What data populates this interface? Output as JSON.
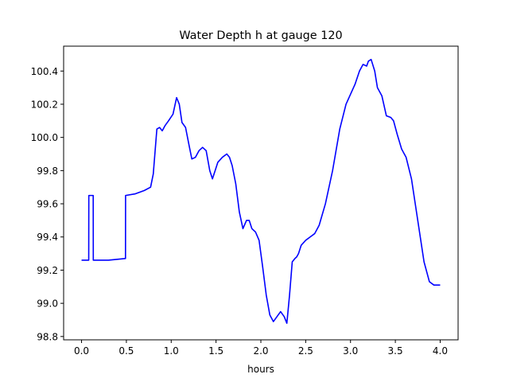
{
  "chart_data": {
    "type": "line",
    "title": "Water Depth h at gauge 120",
    "xlabel": "hours",
    "ylabel": "",
    "xlim": [
      -0.2,
      4.2
    ],
    "ylim": [
      98.78,
      100.55
    ],
    "xticks": [
      "0.0",
      "0.5",
      "1.0",
      "1.5",
      "2.0",
      "2.5",
      "3.0",
      "3.5",
      "4.0"
    ],
    "yticks": [
      "98.8",
      "99.0",
      "99.2",
      "99.4",
      "99.6",
      "99.8",
      "100.0",
      "100.2",
      "100.4"
    ],
    "grid": false,
    "line_color": "#0000ff",
    "series": [
      {
        "x": [
          0.0,
          0.08,
          0.081,
          0.13,
          0.131,
          0.3,
          0.49,
          0.491,
          0.6,
          0.7,
          0.77,
          0.8,
          0.84,
          0.87,
          0.9,
          0.93,
          0.97,
          1.02,
          1.06,
          1.09,
          1.12,
          1.16,
          1.2,
          1.23,
          1.27,
          1.31,
          1.35,
          1.39,
          1.43,
          1.46,
          1.49,
          1.52,
          1.57,
          1.62,
          1.65,
          1.68,
          1.72,
          1.76,
          1.8,
          1.84,
          1.87,
          1.9,
          1.94,
          1.98,
          2.02,
          2.06,
          2.1,
          2.14,
          2.18,
          2.22,
          2.26,
          2.29,
          2.32,
          2.35,
          2.38,
          2.4,
          2.42,
          2.45,
          2.5,
          2.55,
          2.6,
          2.65,
          2.72,
          2.8,
          2.88,
          2.95,
          3.0,
          3.05,
          3.1,
          3.14,
          3.18,
          3.2,
          3.23,
          3.27,
          3.3,
          3.35,
          3.4,
          3.45,
          3.48,
          3.52,
          3.57,
          3.62,
          3.68,
          3.75,
          3.82,
          3.88,
          3.93,
          4.0
        ],
        "y": [
          99.26,
          99.26,
          99.65,
          99.65,
          99.26,
          99.26,
          99.27,
          99.65,
          99.66,
          99.68,
          99.7,
          99.78,
          100.05,
          100.06,
          100.04,
          100.07,
          100.1,
          100.14,
          100.24,
          100.2,
          100.09,
          100.06,
          99.95,
          99.87,
          99.88,
          99.92,
          99.94,
          99.92,
          99.8,
          99.75,
          99.8,
          99.85,
          99.88,
          99.9,
          99.88,
          99.83,
          99.72,
          99.55,
          99.45,
          99.5,
          99.5,
          99.45,
          99.43,
          99.38,
          99.22,
          99.05,
          98.93,
          98.89,
          98.92,
          98.95,
          98.92,
          98.88,
          99.05,
          99.25,
          99.27,
          99.28,
          99.3,
          99.35,
          99.38,
          99.4,
          99.42,
          99.47,
          99.6,
          99.8,
          100.05,
          100.2,
          100.26,
          100.32,
          100.4,
          100.44,
          100.43,
          100.46,
          100.47,
          100.4,
          100.3,
          100.25,
          100.13,
          100.12,
          100.1,
          100.02,
          99.93,
          99.88,
          99.75,
          99.5,
          99.25,
          99.13,
          99.11,
          99.11
        ]
      }
    ]
  }
}
